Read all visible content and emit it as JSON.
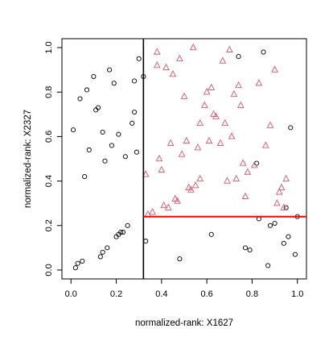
{
  "chart_data": {
    "type": "scatter",
    "title": "",
    "xlabel": "normalized-rank:  X1627",
    "ylabel": "normalized-rank:  X2327",
    "xlim": [
      -0.04,
      1.04
    ],
    "ylim": [
      -0.04,
      1.04
    ],
    "xticks": [
      0.0,
      0.2,
      0.4,
      0.6,
      0.8,
      1.0
    ],
    "yticks": [
      0.0,
      0.2,
      0.4,
      0.6,
      0.8,
      1.0
    ],
    "xtick_labels": [
      "0.0",
      "0.2",
      "0.4",
      "0.6",
      "0.8",
      "1.0"
    ],
    "ytick_labels": [
      "0.0",
      "0.2",
      "0.4",
      "0.6",
      "0.8",
      "1.0"
    ],
    "grid": false,
    "colors": {
      "circle": "#000000",
      "triangle": "#DF536B",
      "hline": "#FF0000",
      "vline": "#000000"
    },
    "vline_x": 0.32,
    "hline": {
      "y": 0.24,
      "x_from": 0.32,
      "x_to": 1.04
    },
    "series": [
      {
        "marker": "circle",
        "points": [
          [
            0.01,
            0.63
          ],
          [
            0.02,
            0.01
          ],
          [
            0.03,
            0.03
          ],
          [
            0.04,
            0.77
          ],
          [
            0.05,
            0.04
          ],
          [
            0.06,
            0.42
          ],
          [
            0.07,
            0.81
          ],
          [
            0.08,
            0.54
          ],
          [
            0.1,
            0.87
          ],
          [
            0.11,
            0.72
          ],
          [
            0.12,
            0.73
          ],
          [
            0.13,
            0.06
          ],
          [
            0.14,
            0.08
          ],
          [
            0.14,
            0.62
          ],
          [
            0.15,
            0.49
          ],
          [
            0.16,
            0.1
          ],
          [
            0.17,
            0.9
          ],
          [
            0.18,
            0.56
          ],
          [
            0.19,
            0.84
          ],
          [
            0.2,
            0.15
          ],
          [
            0.21,
            0.16
          ],
          [
            0.21,
            0.61
          ],
          [
            0.22,
            0.17
          ],
          [
            0.23,
            0.17
          ],
          [
            0.24,
            0.51
          ],
          [
            0.25,
            0.2
          ],
          [
            0.27,
            0.66
          ],
          [
            0.28,
            0.71
          ],
          [
            0.28,
            0.85
          ],
          [
            0.29,
            0.53
          ],
          [
            0.3,
            0.95
          ],
          [
            0.32,
            0.87
          ],
          [
            0.33,
            0.13
          ],
          [
            0.48,
            0.05
          ],
          [
            0.62,
            0.16
          ],
          [
            0.74,
            0.96
          ],
          [
            0.77,
            0.1
          ],
          [
            0.79,
            0.09
          ],
          [
            0.82,
            0.48
          ],
          [
            0.83,
            0.23
          ],
          [
            0.85,
            0.98
          ],
          [
            0.87,
            0.02
          ],
          [
            0.88,
            0.2
          ],
          [
            0.9,
            0.21
          ],
          [
            0.94,
            0.12
          ],
          [
            0.95,
            0.28
          ],
          [
            0.96,
            0.15
          ],
          [
            0.97,
            0.64
          ],
          [
            0.99,
            0.07
          ],
          [
            1.0,
            0.24
          ]
        ]
      },
      {
        "marker": "triangle",
        "points": [
          [
            0.33,
            0.43
          ],
          [
            0.34,
            0.25
          ],
          [
            0.36,
            0.26
          ],
          [
            0.38,
            0.98
          ],
          [
            0.38,
            0.92
          ],
          [
            0.39,
            0.5
          ],
          [
            0.4,
            0.45
          ],
          [
            0.41,
            0.29
          ],
          [
            0.42,
            0.91
          ],
          [
            0.43,
            0.28
          ],
          [
            0.44,
            0.57
          ],
          [
            0.45,
            0.88
          ],
          [
            0.46,
            0.32
          ],
          [
            0.47,
            0.31
          ],
          [
            0.48,
            0.95
          ],
          [
            0.49,
            0.52
          ],
          [
            0.5,
            0.78
          ],
          [
            0.51,
            0.58
          ],
          [
            0.52,
            0.37
          ],
          [
            0.53,
            0.36
          ],
          [
            0.54,
            1.0
          ],
          [
            0.55,
            0.38
          ],
          [
            0.56,
            0.55
          ],
          [
            0.57,
            0.41
          ],
          [
            0.57,
            0.66
          ],
          [
            0.59,
            0.74
          ],
          [
            0.6,
            0.8
          ],
          [
            0.61,
            0.58
          ],
          [
            0.62,
            0.82
          ],
          [
            0.63,
            0.7
          ],
          [
            0.64,
            0.69
          ],
          [
            0.66,
            0.57
          ],
          [
            0.67,
            0.94
          ],
          [
            0.68,
            0.66
          ],
          [
            0.69,
            0.4
          ],
          [
            0.7,
            0.99
          ],
          [
            0.71,
            0.6
          ],
          [
            0.72,
            0.79
          ],
          [
            0.73,
            0.41
          ],
          [
            0.74,
            0.83
          ],
          [
            0.75,
            0.74
          ],
          [
            0.76,
            0.48
          ],
          [
            0.77,
            0.33
          ],
          [
            0.78,
            0.44
          ],
          [
            0.81,
            0.47
          ],
          [
            0.83,
            0.84
          ],
          [
            0.86,
            0.56
          ],
          [
            0.88,
            0.65
          ],
          [
            0.9,
            0.9
          ],
          [
            0.91,
            0.3
          ],
          [
            0.92,
            0.35
          ],
          [
            0.93,
            0.37
          ],
          [
            0.94,
            0.28
          ],
          [
            0.95,
            0.41
          ]
        ]
      }
    ]
  }
}
